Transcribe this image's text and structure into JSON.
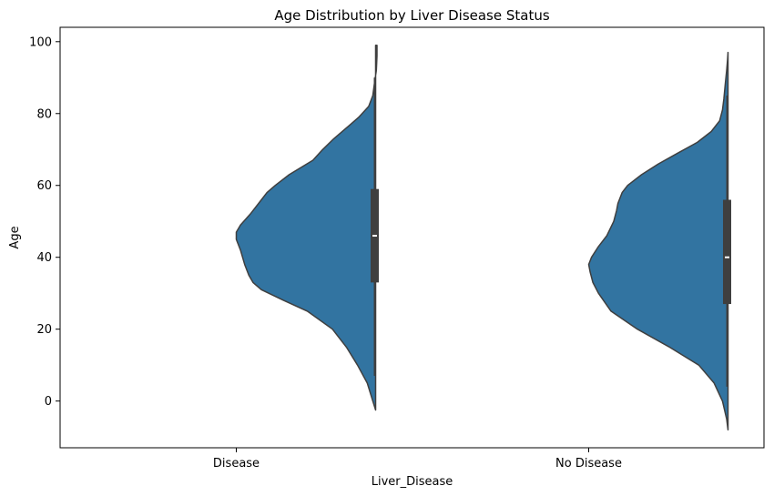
{
  "chart_data": {
    "type": "violin",
    "title": "Age Distribution by Liver Disease Status",
    "xlabel": "Liver_Disease",
    "ylabel": "Age",
    "categories": [
      "Disease",
      "No Disease"
    ],
    "ylim": [
      -13,
      104
    ],
    "yticks": [
      0,
      20,
      40,
      60,
      80,
      100
    ],
    "split": true,
    "colors": {
      "fill": "#3274a1",
      "edge": "#3f3f3f",
      "box": "#3f3f3f",
      "median": "#ffffff"
    },
    "violins": [
      {
        "category": "Disease",
        "density": [
          [
            -2.5,
            0.0
          ],
          [
            0,
            0.02
          ],
          [
            5,
            0.06
          ],
          [
            10,
            0.13
          ],
          [
            15,
            0.21
          ],
          [
            20,
            0.31
          ],
          [
            25,
            0.49
          ],
          [
            28,
            0.66
          ],
          [
            31,
            0.82
          ],
          [
            33,
            0.88
          ],
          [
            35,
            0.91
          ],
          [
            38,
            0.94
          ],
          [
            42,
            0.97
          ],
          [
            45,
            1.0
          ],
          [
            47,
            1.0
          ],
          [
            49,
            0.97
          ],
          [
            52,
            0.9
          ],
          [
            55,
            0.84
          ],
          [
            58,
            0.78
          ],
          [
            60,
            0.72
          ],
          [
            63,
            0.62
          ],
          [
            67,
            0.45
          ],
          [
            70,
            0.38
          ],
          [
            73,
            0.3
          ],
          [
            76,
            0.21
          ],
          [
            79,
            0.12
          ],
          [
            82,
            0.05
          ],
          [
            85,
            0.02
          ],
          [
            88,
            0.01
          ],
          [
            92,
            -0.005
          ],
          [
            96,
            -0.01
          ],
          [
            99,
            -0.01
          ]
        ],
        "box": {
          "q1": 33,
          "median": 46,
          "q3": 59,
          "whisker_low": 7,
          "whisker_high": 90
        }
      },
      {
        "category": "No Disease",
        "density": [
          [
            -8,
            0.0
          ],
          [
            -5,
            0.01
          ],
          [
            0,
            0.04
          ],
          [
            5,
            0.1
          ],
          [
            10,
            0.21
          ],
          [
            15,
            0.42
          ],
          [
            20,
            0.65
          ],
          [
            25,
            0.84
          ],
          [
            30,
            0.93
          ],
          [
            33,
            0.97
          ],
          [
            36,
            0.99
          ],
          [
            38,
            1.0
          ],
          [
            40,
            0.98
          ],
          [
            43,
            0.93
          ],
          [
            46,
            0.87
          ],
          [
            50,
            0.82
          ],
          [
            53,
            0.8
          ],
          [
            55,
            0.79
          ],
          [
            58,
            0.76
          ],
          [
            60,
            0.72
          ],
          [
            63,
            0.62
          ],
          [
            66,
            0.5
          ],
          [
            69,
            0.36
          ],
          [
            72,
            0.22
          ],
          [
            75,
            0.12
          ],
          [
            78,
            0.06
          ],
          [
            81,
            0.04
          ],
          [
            84,
            0.03
          ],
          [
            88,
            0.02
          ],
          [
            92,
            0.01
          ],
          [
            95,
            0.003
          ],
          [
            97,
            0.0
          ]
        ],
        "box": {
          "q1": 27,
          "median": 40,
          "q3": 56,
          "whisker_low": 4,
          "whisker_high": 85
        }
      }
    ]
  }
}
